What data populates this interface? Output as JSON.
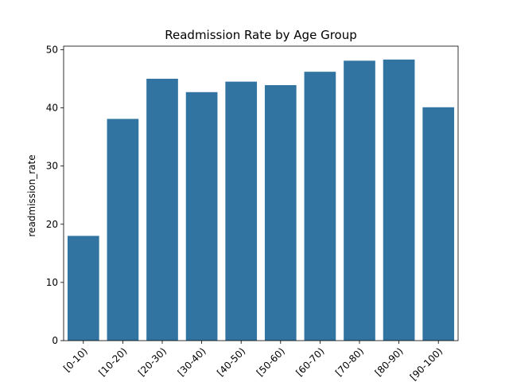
{
  "chart_data": {
    "type": "bar",
    "title": "Readmission Rate by Age Group",
    "xlabel": "",
    "ylabel": "readmission_rate",
    "categories": [
      "[0-10)",
      "[10-20)",
      "[20-30)",
      "[30-40)",
      "[40-50)",
      "[50-60)",
      "[60-70)",
      "[70-80)",
      "[80-90)",
      "[90-100)"
    ],
    "values": [
      18.0,
      38.1,
      45.0,
      42.7,
      44.5,
      43.9,
      46.2,
      48.1,
      48.3,
      40.1
    ],
    "ylim": [
      0,
      50.6
    ],
    "yticks": [
      0,
      10,
      20,
      30,
      40,
      50
    ],
    "grid": false,
    "bar_color": "#3274a1"
  }
}
